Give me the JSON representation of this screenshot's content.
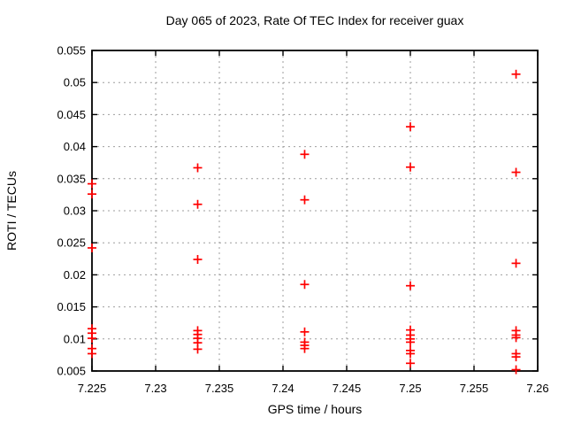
{
  "chart_data": {
    "type": "scatter",
    "title": "Day 065 of 2023, Rate Of TEC Index for receiver guax",
    "xlabel": "GPS time / hours",
    "ylabel": "ROTI / TECUs",
    "xlim": [
      7.225,
      7.26
    ],
    "ylim": [
      0.005,
      0.055
    ],
    "xticks": [
      7.225,
      7.23,
      7.235,
      7.24,
      7.245,
      7.25,
      7.255,
      7.26
    ],
    "xtick_labels": [
      "7.225",
      "7.23",
      "7.235",
      "7.24",
      "7.245",
      "7.25",
      "7.255",
      "7.26"
    ],
    "yticks": [
      0.005,
      0.01,
      0.015,
      0.02,
      0.025,
      0.03,
      0.035,
      0.04,
      0.045,
      0.05,
      0.055
    ],
    "ytick_labels": [
      "0.005",
      "0.01",
      "0.015",
      "0.02",
      "0.025",
      "0.03",
      "0.035",
      "0.04",
      "0.045",
      "0.05",
      "0.055"
    ],
    "grid": true,
    "legend": "none",
    "marker": "plus",
    "marker_color": "#ff0000",
    "grid_color": "#9e9e9e",
    "series": [
      {
        "name": "ROTI",
        "x": [
          7.225,
          7.225,
          7.225,
          7.225,
          7.225,
          7.225,
          7.225,
          7.225,
          7.2333,
          7.2333,
          7.2333,
          7.2333,
          7.2333,
          7.2333,
          7.2333,
          7.2333,
          7.2417,
          7.2417,
          7.2417,
          7.2417,
          7.2417,
          7.2417,
          7.2417,
          7.25,
          7.25,
          7.25,
          7.25,
          7.25,
          7.25,
          7.25,
          7.25,
          7.25,
          7.25,
          7.2583,
          7.2583,
          7.2583,
          7.2583,
          7.2583,
          7.2583,
          7.2583,
          7.2583,
          7.2583
        ],
        "y": [
          0.0342,
          0.0326,
          0.0242,
          0.0116,
          0.0109,
          0.0101,
          0.0085,
          0.0077,
          0.0367,
          0.031,
          0.0224,
          0.0113,
          0.0107,
          0.0101,
          0.0094,
          0.0084,
          0.0388,
          0.0317,
          0.0185,
          0.0111,
          0.0095,
          0.009,
          0.0085,
          0.0431,
          0.0368,
          0.0183,
          0.0114,
          0.0106,
          0.01,
          0.0095,
          0.0082,
          0.0077,
          0.0062,
          0.0513,
          0.036,
          0.0218,
          0.0113,
          0.0106,
          0.0102,
          0.0077,
          0.0072,
          0.0052
        ]
      }
    ]
  }
}
